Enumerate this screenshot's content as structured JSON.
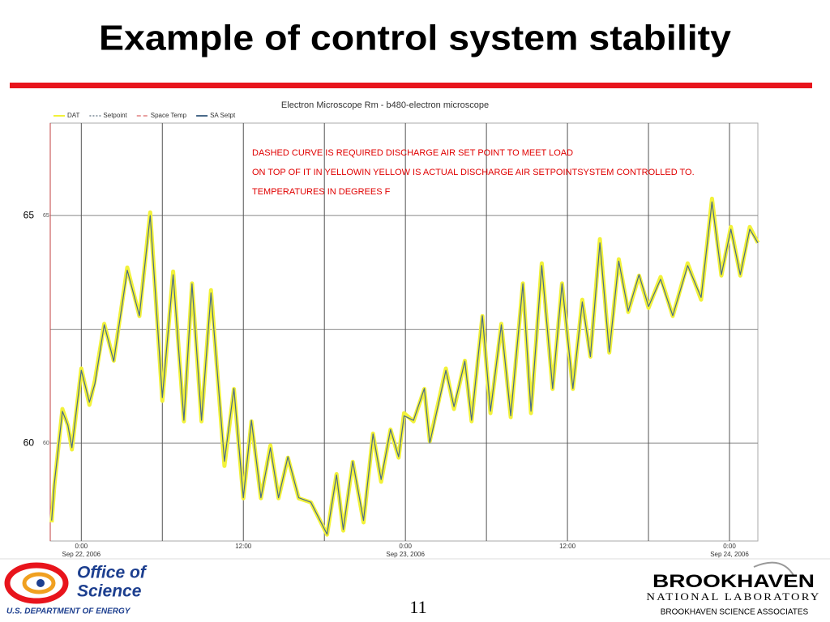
{
  "slide_title": "Example of control system stability",
  "page_number": "11",
  "footer_left": {
    "line1": "Office of",
    "line2": "Science",
    "line3": "U.S. DEPARTMENT OF ENERGY"
  },
  "footer_right": {
    "line1": "BROOKHAVEN",
    "line2": "NATIONAL LABORATORY",
    "line3": "BROOKHAVEN SCIENCE ASSOCIATES"
  },
  "chart_data": {
    "type": "line",
    "title": "Electron Microscope Rm - b480-electron microscope",
    "annotations": [
      "DASHED CURVE IS REQUIRED DISCHARGE AIR SET POINT TO MEET LOAD",
      "ON TOP OF IT IN YELLOWIN YELLOW IS ACTUAL DISCHARGE AIR SETPOINTSYSTEM CONTROLLED TO.",
      "TEMPERATURES IN DEGREES F"
    ],
    "x": [
      -2.2,
      -2,
      -1.4,
      -1,
      -0.7,
      0,
      0.6,
      1,
      1.7,
      2.4,
      3.4,
      4.3,
      5.1,
      6,
      6.8,
      7.6,
      8.2,
      8.9,
      9.6,
      10.6,
      11.3,
      12,
      12.6,
      13.3,
      14,
      14.6,
      15.3,
      16.1,
      17,
      18.2,
      18.9,
      19.4,
      20.1,
      20.9,
      21.6,
      22.2,
      22.9,
      23.5,
      23.9,
      24.6,
      25.4,
      25.8,
      27,
      27.6,
      28.4,
      28.9,
      29.7,
      30.3,
      31.1,
      31.8,
      32.7,
      33.3,
      34.1,
      34.9,
      35.6,
      36.4,
      37.1,
      37.7,
      38.4,
      39.1,
      39.8,
      40.5,
      41.3,
      42,
      42.9,
      43.8,
      44.9,
      45.9,
      46.7,
      47.4,
      48.1,
      48.8,
      49.5,
      50.1
    ],
    "series": [
      {
        "name": "DAT",
        "color": "#f2f23a",
        "values": [
          58.26,
          59.06,
          60.75,
          60.39,
          59.86,
          61.64,
          60.84,
          61.37,
          62.62,
          61.81,
          63.86,
          62.79,
          65.07,
          60.93,
          63.77,
          60.48,
          63.51,
          60.48,
          63.36,
          59.5,
          61.19,
          58.79,
          60.48,
          58.79,
          59.95,
          58.79,
          59.68,
          58.79,
          58.7,
          57.99,
          59.32,
          58.08,
          59.59,
          58.26,
          60.21,
          59.15,
          60.3,
          59.68,
          60.66,
          60.48,
          61.19,
          60.04,
          61.64,
          60.75,
          61.81,
          60.48,
          62.79,
          60.66,
          62.62,
          60.57,
          63.51,
          60.66,
          63.95,
          61.19,
          63.51,
          61.19,
          63.15,
          61.9,
          64.48,
          61.99,
          64.04,
          62.88,
          63.68,
          62.97,
          63.65,
          62.79,
          63.95,
          63.15,
          65.37,
          63.68,
          64.75,
          63.68,
          64.75,
          64.4
        ]
      },
      {
        "name": "Setpoint",
        "color": "#9aa6b0"
      },
      {
        "name": "Space Temp",
        "color": "#e8a0a0"
      },
      {
        "name": "SA Setpt",
        "color": "#4a6a8a",
        "values": [
          58.3,
          59.1,
          60.7,
          60.4,
          59.9,
          61.6,
          60.9,
          61.3,
          62.6,
          61.8,
          63.8,
          62.8,
          65.0,
          61.0,
          63.7,
          60.5,
          63.5,
          60.5,
          63.3,
          59.6,
          61.2,
          58.8,
          60.5,
          58.8,
          59.9,
          58.8,
          59.7,
          58.8,
          58.7,
          58.0,
          59.3,
          58.1,
          59.6,
          58.3,
          60.2,
          59.2,
          60.3,
          59.7,
          60.6,
          60.5,
          61.2,
          60.0,
          61.6,
          60.8,
          61.8,
          60.5,
          62.8,
          60.7,
          62.6,
          60.6,
          63.5,
          60.7,
          63.9,
          61.2,
          63.5,
          61.2,
          63.1,
          61.9,
          64.4,
          62.0,
          64.0,
          62.9,
          63.7,
          63.0,
          63.6,
          62.8,
          63.9,
          63.2,
          65.3,
          63.7,
          64.7,
          63.7,
          64.7,
          64.4
        ]
      }
    ],
    "xlim": [
      -2.3,
      50.1
    ],
    "ylim": [
      57.85,
      67.03
    ],
    "xticks": [
      {
        "value": 0,
        "label": "0:00",
        "date": "Sep 22, 2006"
      },
      {
        "value": 12,
        "label": "12:00"
      },
      {
        "value": 24,
        "label": "0:00",
        "date": "Sep 23, 2006"
      },
      {
        "value": 36,
        "label": "12:00"
      },
      {
        "value": 48,
        "label": "0:00",
        "date": "Sep 24, 2006"
      }
    ],
    "xgrid": [
      6,
      18,
      30,
      42
    ],
    "yticks": [
      60,
      65
    ],
    "ygrid": [
      62.5
    ],
    "grid": true
  }
}
